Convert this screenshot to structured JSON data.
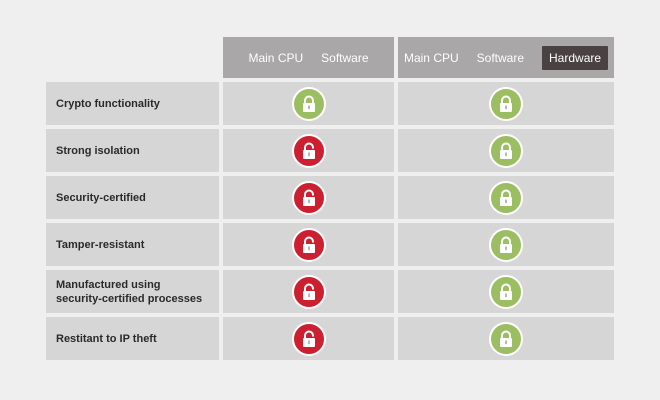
{
  "columns": {
    "software": {
      "labels": [
        "Main CPU",
        "Software"
      ]
    },
    "hardware": {
      "labels": [
        "Main CPU",
        "Software",
        "Hardware"
      ]
    }
  },
  "rows": [
    {
      "label": "Crypto functionality",
      "software": "locked",
      "hardware": "locked"
    },
    {
      "label": "Strong isolation",
      "software": "unlocked",
      "hardware": "locked"
    },
    {
      "label": "Security-certified",
      "software": "unlocked",
      "hardware": "locked"
    },
    {
      "label": "Tamper-resistant",
      "software": "unlocked",
      "hardware": "locked"
    },
    {
      "label": "Manufactured using\nsecurity-certified processes",
      "software": "unlocked",
      "hardware": "locked"
    },
    {
      "label": "Restitant to IP theft",
      "software": "unlocked",
      "hardware": "locked"
    }
  ],
  "icons": {
    "locked": {
      "name": "lock-closed-icon",
      "color": "#9cbe62"
    },
    "unlocked": {
      "name": "lock-open-icon",
      "color": "#cc1f30"
    }
  }
}
